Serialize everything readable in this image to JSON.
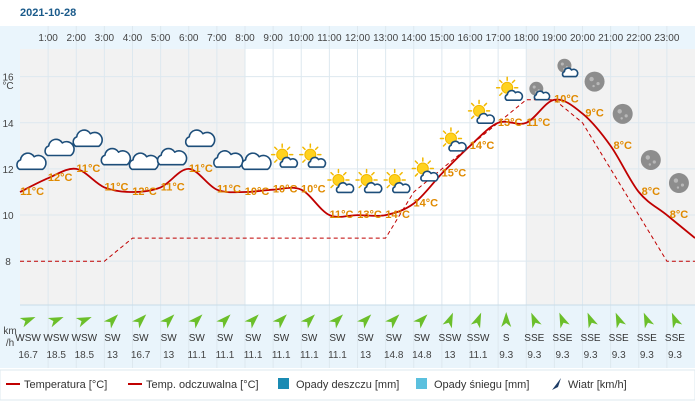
{
  "date": "2021-10-28",
  "y_axis_unit": "°C",
  "wind_axis_unit_top": "km",
  "wind_axis_unit_bottom": "/h",
  "legend": [
    {
      "label": "Temperatura [°C]",
      "kind": "line",
      "color": "#c00000"
    },
    {
      "label": "Temp. odczuwalna [°C]",
      "kind": "dash",
      "color": "#c00000"
    },
    {
      "label": "Opady deszczu [mm]",
      "kind": "box",
      "color": "#1a8bb3"
    },
    {
      "label": "Opady śniegu [mm]",
      "kind": "box",
      "color": "#5bc0de"
    },
    {
      "label": "Wiatr [km/h]",
      "kind": "arrow",
      "color": "#1d3c66"
    }
  ],
  "colors": {
    "temperature": "#c00000",
    "temp_label": "#e08a00",
    "night_band": "#f2f2f2",
    "wind_row": "#e9f4fb",
    "arrow": "#6bbf2a",
    "top_band": "#eaf5fc"
  },
  "chart_data": {
    "type": "line",
    "x": [
      "0:00",
      "1:00",
      "2:00",
      "3:00",
      "4:00",
      "5:00",
      "6:00",
      "7:00",
      "8:00",
      "9:00",
      "10:00",
      "11:00",
      "12:00",
      "13:00",
      "14:00",
      "15:00",
      "16:00",
      "17:00",
      "18:00",
      "19:00",
      "20:00",
      "21:00",
      "22:00",
      "23:00",
      "24:00"
    ],
    "hour_labels": [
      "1:00",
      "2:00",
      "3:00",
      "4:00",
      "5:00",
      "6:00",
      "7:00",
      "8:00",
      "9:00",
      "10:00",
      "11:00",
      "12:00",
      "13:00",
      "14:00",
      "15:00",
      "16:00",
      "17:00",
      "18:00",
      "19:00",
      "20:00",
      "21:00",
      "22:00",
      "23:00"
    ],
    "series": [
      {
        "name": "Temperatura [°C]",
        "values": [
          11,
          11.6,
          12,
          11.2,
          11,
          11.2,
          12,
          11.1,
          11,
          11.1,
          11.1,
          10,
          10,
          10,
          10.5,
          11.8,
          13,
          14,
          14,
          15,
          14.4,
          13,
          11,
          10,
          9
        ]
      },
      {
        "name": "Temp. odczuwalna [°C]",
        "values": [
          8,
          8,
          8,
          8,
          9,
          9,
          9,
          9,
          9,
          9,
          9,
          9,
          9,
          9,
          11,
          12,
          13,
          14,
          15,
          15,
          14,
          12,
          10,
          8,
          8
        ]
      }
    ],
    "y_ticks": [
      8,
      10,
      12,
      14,
      16
    ],
    "ylim": [
      6.1,
      17.2
    ],
    "y_label": "°C",
    "night_ranges": [
      [
        0,
        8
      ],
      [
        18,
        24
      ]
    ],
    "icons": [
      {
        "slot": 1,
        "temp": "11°C",
        "icon": "cloud"
      },
      {
        "slot": 2,
        "temp": "12°C",
        "icon": "cloud"
      },
      {
        "slot": 3,
        "temp": "11°C",
        "icon": "cloud"
      },
      {
        "slot": 4,
        "temp": "11°C",
        "icon": "cloud"
      },
      {
        "slot": 5,
        "temp": "12°C",
        "icon": "cloud"
      },
      {
        "slot": 6,
        "temp": "11°C",
        "icon": "cloud"
      },
      {
        "slot": 7,
        "temp": "11°C",
        "icon": "cloud"
      },
      {
        "slot": 8,
        "temp": "11°C",
        "icon": "cloud"
      },
      {
        "slot": 9,
        "temp": "10°C",
        "icon": "cloud"
      },
      {
        "slot": 10,
        "temp": "10°C",
        "icon": "sun-cloud"
      },
      {
        "slot": 11,
        "temp": "10°C",
        "icon": "sun-cloud"
      },
      {
        "slot": 12,
        "temp": "11°C",
        "icon": "sun-cloud"
      },
      {
        "slot": 13,
        "temp": "13°C",
        "icon": "sun-cloud"
      },
      {
        "slot": 14,
        "temp": "14°C",
        "icon": "sun-cloud"
      },
      {
        "slot": 15,
        "temp": "14°C",
        "icon": "sun-cloud"
      },
      {
        "slot": 16,
        "temp": "15°C",
        "icon": "sun-cloud"
      },
      {
        "slot": 17,
        "temp": "14°C",
        "icon": "sun-cloud"
      },
      {
        "slot": 18,
        "temp": "13°C",
        "icon": "sun-cloud"
      },
      {
        "slot": 19,
        "temp": "11°C",
        "icon": "moon-cloud"
      },
      {
        "slot": 20,
        "temp": "10°C",
        "icon": "moon-cloud"
      },
      {
        "slot": 21,
        "temp": "9°C",
        "icon": "moon"
      },
      {
        "slot": 22,
        "temp": "8°C",
        "icon": "moon"
      },
      {
        "slot": 23,
        "temp": "8°C",
        "icon": "moon"
      },
      {
        "slot": 24,
        "temp": "8°C",
        "icon": "moon"
      }
    ],
    "wind_dir": [
      "WSW",
      "WSW",
      "WSW",
      "SW",
      "SW",
      "SW",
      "SW",
      "SW",
      "SW",
      "SW",
      "SW",
      "SW",
      "SW",
      "SW",
      "SW",
      "SSW",
      "SSW",
      "S",
      "SSE",
      "SSE",
      "SSE",
      "SSE",
      "SSE",
      "SSE"
    ],
    "wind_speed": [
      "16.7",
      "18.5",
      "18.5",
      "13",
      "16.7",
      "13",
      "11.1",
      "11.1",
      "11.1",
      "11.1",
      "11.1",
      "11.1",
      "13",
      "14.8",
      "14.8",
      "13",
      "11.1",
      "9.3",
      "9.3",
      "9.3",
      "9.3",
      "9.3",
      "9.3",
      "9.3"
    ]
  }
}
